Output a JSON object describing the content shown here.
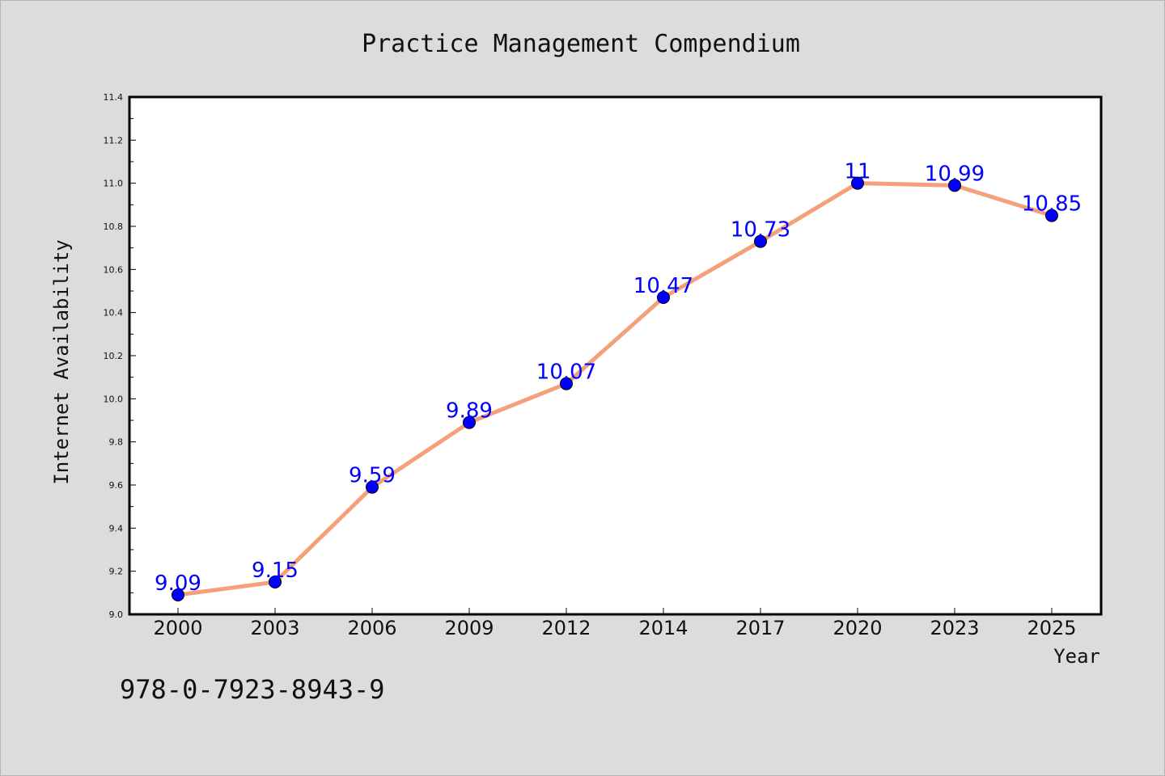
{
  "chart_data": {
    "type": "line",
    "title": "Practice Management Compendium",
    "xlabel": "Year",
    "ylabel": "Internet Availability",
    "categories": [
      "2000",
      "2003",
      "2006",
      "2009",
      "2012",
      "2014",
      "2017",
      "2020",
      "2023",
      "2025"
    ],
    "series": [
      {
        "values": [
          9.09,
          9.15,
          9.59,
          9.89,
          10.07,
          10.47,
          10.73,
          11.0,
          10.99,
          10.85
        ],
        "data_labels": [
          "9.09",
          "9.15",
          "9.59",
          "9.89",
          "10.07",
          "10.47",
          "10.73",
          "11",
          "10.99",
          "10.85"
        ],
        "line_color": "#f4a07a",
        "marker_color": "#0000ff"
      }
    ],
    "ylim": [
      9.0,
      11.4
    ],
    "yticks": [
      "9.0",
      "9.2",
      "9.4",
      "9.6",
      "9.8",
      "10.0",
      "10.2",
      "10.4",
      "10.6",
      "10.8",
      "11.0",
      "11.2",
      "11.4"
    ],
    "grid": false,
    "legend": "none",
    "background_color": "#dcdcdc",
    "plot_background": "#ffffff"
  },
  "footer": {
    "isbn": "978-0-7923-8943-9"
  }
}
